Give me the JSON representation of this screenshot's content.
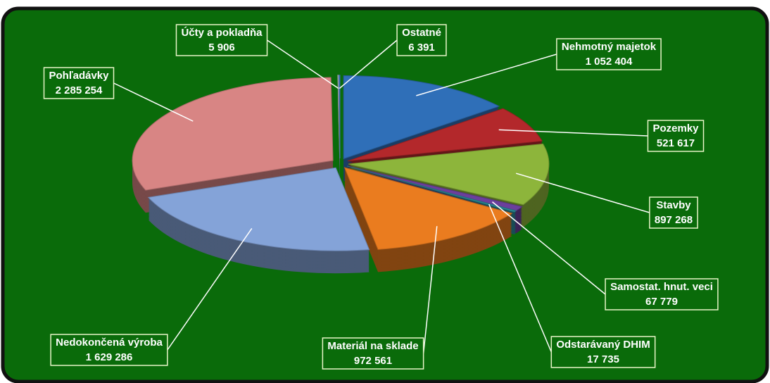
{
  "chart_data": {
    "type": "pie",
    "categories": [
      "Nehmotný majetok",
      "Pozemky",
      "Stavby",
      "Samostat. hnut. veci",
      "Odstarávaný DHIM",
      "Materiál na sklade",
      "Nedokončená výroba",
      "Pohľadávky",
      "Účty a pokladňa",
      "Ostatné"
    ],
    "values": [
      1052404,
      521617,
      897268,
      67779,
      17735,
      972561,
      1629286,
      2285254,
      5906,
      6391
    ],
    "value_labels": [
      "1 052 404",
      "521 617",
      "897 268",
      "67 779",
      "17 735",
      "972 561",
      "1 629 286",
      "2 285 254",
      "5 906",
      "6 391"
    ],
    "colors": [
      "#2f6fb8",
      "#b3282b",
      "#8db53b",
      "#6b3f9c",
      "#2a8e9a",
      "#ea7c1f",
      "#84a3d8",
      "#d88584",
      "#c8c8c8",
      "#4d84d4"
    ]
  }
}
